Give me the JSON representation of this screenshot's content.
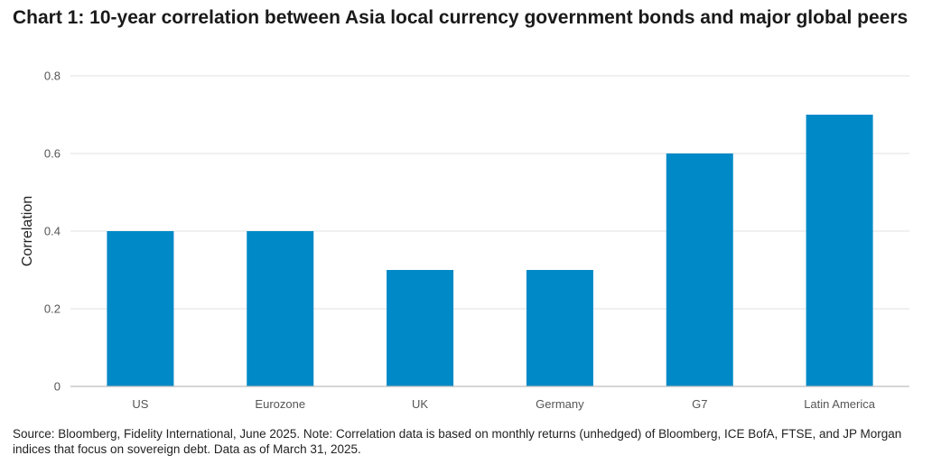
{
  "title": "Chart 1: 10-year correlation between Asia local currency government bonds and major global peers",
  "source_note": "Source: Bloomberg, Fidelity International, June 2025. Note: Correlation data is based on monthly returns (unhedged) of Bloomberg, ICE BofA, FTSE, and JP Morgan indices that focus on sovereign debt. Data as of March 31, 2025.",
  "chart_data": {
    "type": "bar",
    "categories": [
      "US",
      "Eurozone",
      "UK",
      "Germany",
      "G7",
      "Latin America"
    ],
    "values": [
      0.4,
      0.4,
      0.3,
      0.3,
      0.6,
      0.7
    ],
    "ylabel": "Correlation",
    "xlabel": "",
    "ylim": [
      0,
      0.8
    ],
    "yticks": [
      "0",
      "0.2",
      "0.4",
      "0.6",
      "0.8"
    ],
    "grid": true,
    "legend": "none",
    "bar_color": "#0089c7",
    "grid_color": "#e2e2e2",
    "axis_color": "#bdbdbd"
  }
}
